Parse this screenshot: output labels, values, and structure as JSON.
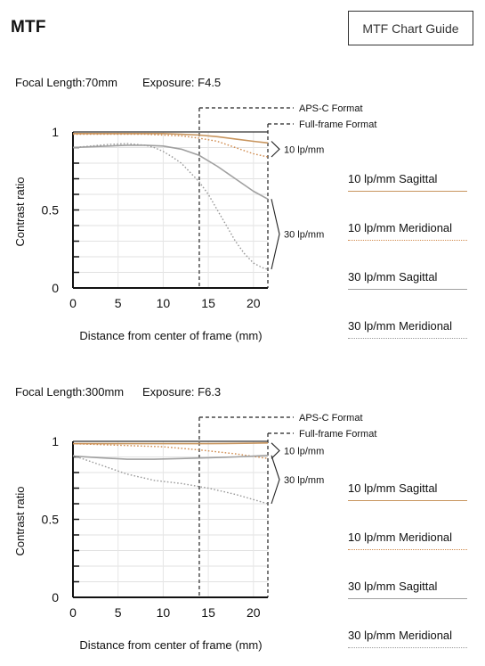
{
  "page": {
    "title": "MTF",
    "guide_button": "MTF Chart Guide"
  },
  "colors": {
    "sagittal_10": "#c8955e",
    "meridional_10": "#d08a4c",
    "sagittal_30": "#a0a0a0",
    "meridional_30": "#9a9a9a",
    "axis": "#111111",
    "grid": "#dddddd"
  },
  "legend": [
    {
      "label": "10 lp/mm Sagittal",
      "style": "solid",
      "color": "#c8955e"
    },
    {
      "label": "10 lp/mm Meridional",
      "style": "dotted",
      "color": "#d08a4c"
    },
    {
      "label": "30 lp/mm Sagittal",
      "style": "solid",
      "color": "#a0a0a0"
    },
    {
      "label": "30 lp/mm Meridional",
      "style": "dotted",
      "color": "#9a9a9a"
    }
  ],
  "chart_data": [
    {
      "type": "line",
      "title": "Focal Length:70mm Exposure: F4.5",
      "focal_label": "Focal Length:70mm",
      "exposure_label": "Exposure: F4.5",
      "xlabel": "Distance from center of frame (mm)",
      "ylabel": "Contrast ratio",
      "xlim": [
        0,
        21.6
      ],
      "ylim": [
        0,
        1
      ],
      "xticks": [
        0,
        5,
        10,
        15,
        20
      ],
      "yticks": [
        0,
        0.5,
        1
      ],
      "grid": true,
      "markers": [
        {
          "label": "APS-C Format",
          "x": 14
        },
        {
          "label": "Full-frame Format",
          "x": 21.6
        }
      ],
      "group_labels": [
        {
          "label": "10 lp/mm",
          "y_range": [
            0.84,
            0.94
          ]
        },
        {
          "label": "30 lp/mm",
          "y_range": [
            0.12,
            0.57
          ]
        }
      ],
      "series": [
        {
          "name": "10 lp/mm Sagittal",
          "style": "solid",
          "color": "#c8955e",
          "x": [
            0,
            2,
            4,
            6,
            8,
            10,
            12,
            14,
            16,
            18,
            20,
            21.6
          ],
          "y": [
            0.99,
            0.99,
            0.99,
            0.99,
            0.99,
            0.99,
            0.985,
            0.98,
            0.97,
            0.955,
            0.94,
            0.93
          ]
        },
        {
          "name": "10 lp/mm Meridional",
          "style": "dotted",
          "color": "#d08a4c",
          "x": [
            0,
            2,
            4,
            6,
            8,
            10,
            12,
            14,
            16,
            18,
            20,
            21.6
          ],
          "y": [
            0.985,
            0.985,
            0.985,
            0.985,
            0.985,
            0.98,
            0.975,
            0.96,
            0.94,
            0.9,
            0.86,
            0.84
          ]
        },
        {
          "name": "30 lp/mm Sagittal",
          "style": "solid",
          "color": "#a0a0a0",
          "x": [
            0,
            2,
            4,
            6,
            8,
            10,
            12,
            14,
            16,
            18,
            20,
            21.6
          ],
          "y": [
            0.9,
            0.905,
            0.91,
            0.915,
            0.915,
            0.91,
            0.89,
            0.85,
            0.78,
            0.7,
            0.62,
            0.57
          ]
        },
        {
          "name": "30 lp/mm Meridional",
          "style": "dotted",
          "color": "#9a9a9a",
          "x": [
            0,
            2,
            4,
            6,
            8,
            9,
            10,
            11,
            12,
            13,
            14,
            15,
            16,
            17,
            18,
            19,
            20,
            21,
            21.6
          ],
          "y": [
            0.9,
            0.91,
            0.92,
            0.925,
            0.915,
            0.9,
            0.875,
            0.84,
            0.8,
            0.74,
            0.68,
            0.6,
            0.5,
            0.4,
            0.3,
            0.22,
            0.16,
            0.13,
            0.12
          ]
        }
      ]
    },
    {
      "type": "line",
      "title": "Focal Length:300mm Exposure: F6.3",
      "focal_label": "Focal Length:300mm",
      "exposure_label": "Exposure: F6.3",
      "xlabel": "Distance from center of frame (mm)",
      "ylabel": "Contrast ratio",
      "xlim": [
        0,
        21.6
      ],
      "ylim": [
        0,
        1
      ],
      "xticks": [
        0,
        5,
        10,
        15,
        20
      ],
      "yticks": [
        0,
        0.5,
        1
      ],
      "grid": true,
      "markers": [
        {
          "label": "APS-C Format",
          "x": 14
        },
        {
          "label": "Full-frame Format",
          "x": 21.6
        }
      ],
      "group_labels": [
        {
          "label": "10 lp/mm",
          "y_range": [
            0.89,
            0.99
          ]
        },
        {
          "label": "30 lp/mm",
          "y_range": [
            0.6,
            0.91
          ]
        }
      ],
      "series": [
        {
          "name": "10 lp/mm Sagittal",
          "style": "solid",
          "color": "#c8955e",
          "x": [
            0,
            5,
            10,
            15,
            20,
            21.6
          ],
          "y": [
            0.985,
            0.985,
            0.985,
            0.985,
            0.988,
            0.99
          ]
        },
        {
          "name": "10 lp/mm Meridional",
          "style": "dotted",
          "color": "#d08a4c",
          "x": [
            0,
            5,
            10,
            14,
            18,
            21.6
          ],
          "y": [
            0.985,
            0.975,
            0.965,
            0.945,
            0.92,
            0.89
          ]
        },
        {
          "name": "30 lp/mm Sagittal",
          "style": "solid",
          "color": "#a0a0a0",
          "x": [
            0,
            3,
            6,
            9,
            12,
            15,
            18,
            21.6
          ],
          "y": [
            0.905,
            0.895,
            0.885,
            0.885,
            0.89,
            0.895,
            0.9,
            0.91
          ]
        },
        {
          "name": "30 lp/mm Meridional",
          "style": "dotted",
          "color": "#9a9a9a",
          "x": [
            0,
            3,
            6,
            9,
            12,
            15,
            18,
            21.6
          ],
          "y": [
            0.91,
            0.85,
            0.79,
            0.75,
            0.73,
            0.7,
            0.66,
            0.6
          ]
        }
      ]
    }
  ]
}
